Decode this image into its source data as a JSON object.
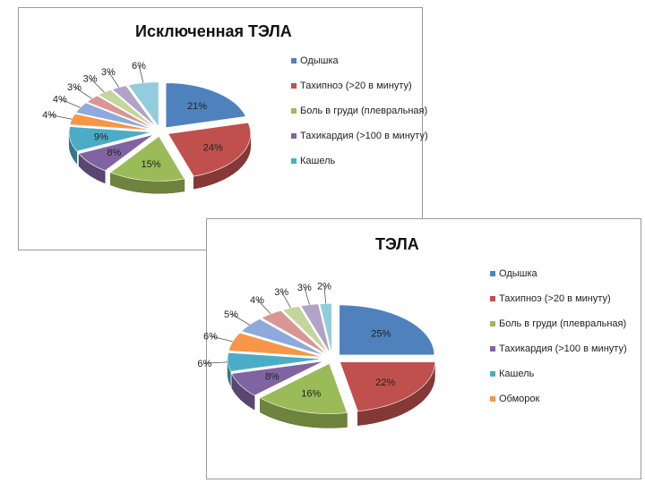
{
  "chart_data": [
    {
      "type": "pie",
      "title": "Исключенная ТЭЛА",
      "values": [
        21,
        24,
        15,
        8,
        9,
        4,
        4,
        3,
        3,
        3,
        6
      ],
      "labels": [
        "21%",
        "24%",
        "15%",
        "8%",
        "9%",
        "4%",
        "4%",
        "3%",
        "3%",
        "3%",
        "6%"
      ],
      "colors": [
        "#4f81bd",
        "#c0504d",
        "#9bbb59",
        "#8064a2",
        "#4bacc6",
        "#f79646",
        "#8ea9db",
        "#d99694",
        "#c3d69b",
        "#b3a2c7",
        "#93cddd"
      ],
      "legend": [
        "Одышка",
        "Тахипноэ (>20 в минуту)",
        "Боль в груди (плевральная)",
        "Тахикардия (>100 в минуту)",
        "Кашель"
      ],
      "legend_position": "right"
    },
    {
      "type": "pie",
      "title": "ТЭЛА",
      "values": [
        25,
        22,
        16,
        8,
        6,
        6,
        5,
        4,
        3,
        3,
        2
      ],
      "labels": [
        "25%",
        "22%",
        "16%",
        "8%",
        "6%",
        "6%",
        "5%",
        "4%",
        "3%",
        "3%",
        "2%"
      ],
      "colors": [
        "#4f81bd",
        "#c0504d",
        "#9bbb59",
        "#8064a2",
        "#4bacc6",
        "#f79646",
        "#8ea9db",
        "#d99694",
        "#c3d69b",
        "#b3a2c7",
        "#93cddd"
      ],
      "legend": [
        "Одышка",
        "Тахипноэ (>20 в минуту)",
        "Боль в груди (плевральная)",
        "Тахикардия (>100 в минуту)",
        "Кашель",
        "Обморок"
      ],
      "legend_position": "right"
    }
  ]
}
